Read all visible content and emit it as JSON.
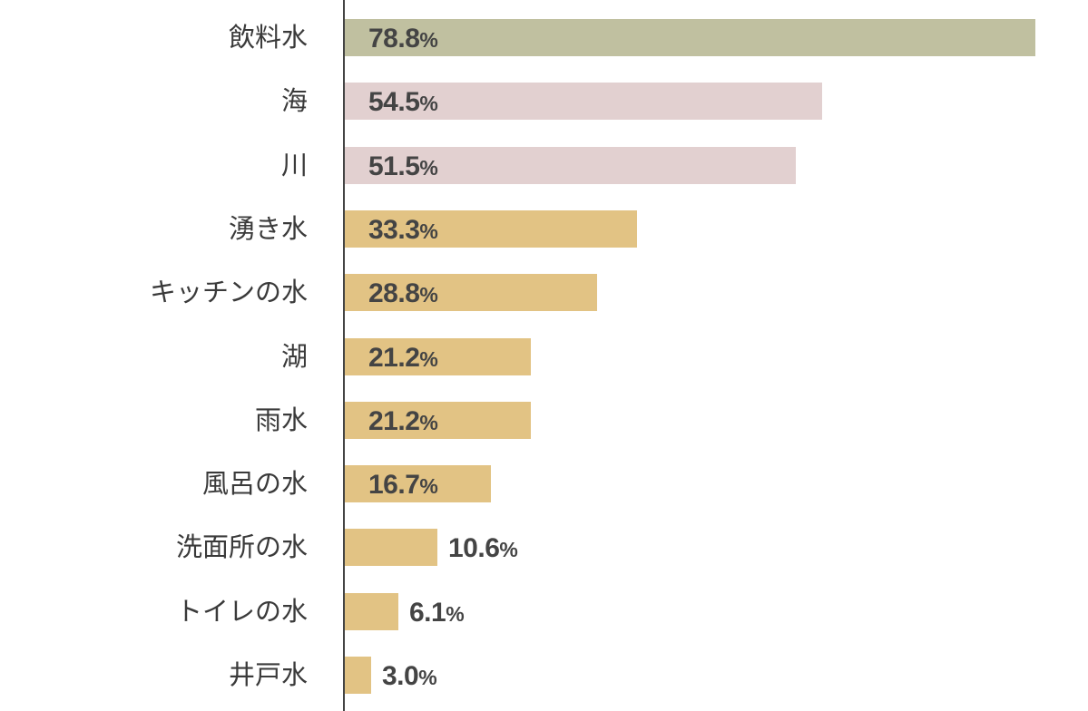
{
  "chart_data": {
    "type": "bar",
    "orientation": "horizontal",
    "title": "",
    "xlabel": "",
    "ylabel": "",
    "xlim": [
      0,
      80
    ],
    "grid": false,
    "legend": null,
    "categories": [
      "飲料水",
      "海",
      "川",
      "湧き水",
      "キッチンの水",
      "湖",
      "雨水",
      "風呂の水",
      "洗面所の水",
      "トイレの水",
      "井戸水"
    ],
    "values": [
      78.8,
      54.5,
      51.5,
      33.3,
      28.8,
      21.2,
      21.2,
      16.7,
      10.6,
      6.1,
      3.0
    ],
    "value_labels": [
      "78.8%",
      "54.5%",
      "51.5%",
      "33.3%",
      "28.8%",
      "21.2%",
      "21.2%",
      "16.7%",
      "10.6%",
      "6.1%",
      "3.0%"
    ],
    "colors": [
      "#c0c0a0",
      "#e2d0d0",
      "#e2d0d0",
      "#e2c384",
      "#e2c384",
      "#e2c384",
      "#e2c384",
      "#e2c384",
      "#e2c384",
      "#e2c384",
      "#e2c384"
    ]
  },
  "rows": [
    {
      "label": "飲料水",
      "num": "78.8",
      "pct": "%"
    },
    {
      "label": "海",
      "num": "54.5",
      "pct": "%"
    },
    {
      "label": "川",
      "num": "51.5",
      "pct": "%"
    },
    {
      "label": "湧き水",
      "num": "33.3",
      "pct": "%"
    },
    {
      "label": "キッチンの水",
      "num": "28.8",
      "pct": "%"
    },
    {
      "label": "湖",
      "num": "21.2",
      "pct": "%"
    },
    {
      "label": "雨水",
      "num": "21.2",
      "pct": "%"
    },
    {
      "label": "風呂の水",
      "num": "16.7",
      "pct": "%"
    },
    {
      "label": "洗面所の水",
      "num": "10.6",
      "pct": "%"
    },
    {
      "label": "トイレの水",
      "num": "6.1",
      "pct": "%"
    },
    {
      "label": "井戸水",
      "num": "3.0",
      "pct": "%"
    }
  ]
}
